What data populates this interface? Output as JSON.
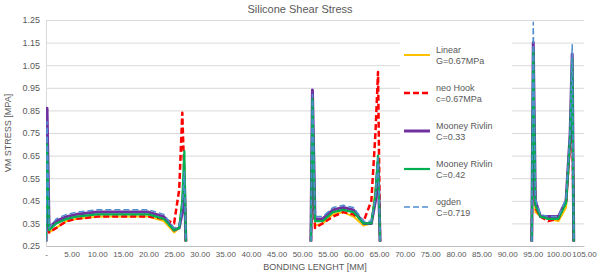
{
  "chart_data": {
    "type": "line",
    "title": "Silicone Shear Stress",
    "x_label": "BONDING LENGHT [MM]",
    "y_label": "VM STRESS [MPA]",
    "x": [
      0,
      0.2,
      0.6,
      2,
      4,
      6,
      10,
      15,
      20,
      23,
      25,
      26,
      26.6,
      27,
      27.3,
      40,
      51.7,
      52,
      52.5,
      54,
      56,
      58,
      60,
      62,
      63.5,
      64.3,
      64.8,
      65.2,
      80,
      94.8,
      95.1,
      95.5,
      96.5,
      98,
      100,
      101.5,
      102.3,
      102.7,
      103
    ],
    "series": [
      {
        "name": "Linear\nG=0.67MPa",
        "color": "#FFC000",
        "line_style": "solid",
        "values": [
          0.27,
          0.6,
          0.31,
          0.33,
          0.36,
          0.37,
          0.38,
          0.38,
          0.38,
          0.36,
          0.31,
          0.33,
          0.45,
          0.6,
          0.27,
          null,
          0.27,
          0.7,
          0.34,
          0.35,
          0.39,
          0.4,
          0.38,
          0.34,
          0.35,
          0.5,
          0.62,
          0.27,
          null,
          0.27,
          0.95,
          0.4,
          0.38,
          0.37,
          0.36,
          0.42,
          0.7,
          0.95,
          0.27
        ]
      },
      {
        "name": "neo Hook\nc=0.67MPa",
        "color": "#FF0000",
        "line_style": "dashed",
        "values": [
          0.27,
          0.62,
          0.31,
          0.33,
          0.36,
          0.37,
          0.38,
          0.38,
          0.38,
          0.37,
          0.35,
          0.5,
          0.84,
          0.55,
          0.27,
          null,
          0.27,
          0.65,
          0.33,
          0.35,
          0.38,
          0.4,
          0.39,
          0.36,
          0.45,
          0.75,
          1.02,
          0.27,
          null,
          0.27,
          0.9,
          0.42,
          0.38,
          0.36,
          0.37,
          0.45,
          0.72,
          0.88,
          0.27
        ]
      },
      {
        "name": "Mooney Rivlin\nC=0.33",
        "color": "#7030A0",
        "line_style": "solid",
        "values": [
          0.27,
          0.86,
          0.33,
          0.36,
          0.38,
          0.39,
          0.4,
          0.4,
          0.4,
          0.38,
          0.32,
          0.33,
          0.4,
          0.55,
          0.27,
          null,
          0.27,
          0.94,
          0.37,
          0.37,
          0.41,
          0.42,
          0.41,
          0.35,
          0.35,
          0.45,
          0.62,
          0.27,
          null,
          0.27,
          1.15,
          0.45,
          0.38,
          0.38,
          0.38,
          0.45,
          0.75,
          1.1,
          0.27
        ]
      },
      {
        "name": "Mooney Rivlin\nC=0.42",
        "color": "#00B050",
        "line_style": "solid",
        "values": [
          0.27,
          0.7,
          0.32,
          0.35,
          0.37,
          0.38,
          0.39,
          0.39,
          0.39,
          0.37,
          0.32,
          0.33,
          0.45,
          0.67,
          0.27,
          null,
          0.27,
          0.9,
          0.36,
          0.36,
          0.4,
          0.41,
          0.4,
          0.35,
          0.35,
          0.48,
          0.65,
          0.27,
          null,
          0.27,
          1.12,
          0.43,
          0.38,
          0.37,
          0.37,
          0.44,
          0.74,
          1.08,
          0.27
        ]
      },
      {
        "name": "ogden\nC=0.719",
        "color": "#4F8FCF",
        "line_style": "dashed",
        "values": [
          0.27,
          0.8,
          0.33,
          0.37,
          0.39,
          0.4,
          0.41,
          0.41,
          0.41,
          0.39,
          0.33,
          0.34,
          0.42,
          0.58,
          0.27,
          null,
          0.27,
          0.92,
          0.38,
          0.38,
          0.42,
          0.43,
          0.42,
          0.36,
          0.36,
          0.47,
          0.64,
          0.27,
          null,
          0.27,
          1.24,
          0.46,
          0.39,
          0.38,
          0.38,
          0.46,
          0.76,
          1.14,
          0.27
        ]
      }
    ],
    "xlim": [
      0,
      105
    ],
    "xticks": [
      {
        "value": 0,
        "label": "-"
      },
      {
        "value": 5,
        "label": "5.00"
      },
      {
        "value": 10,
        "label": "10.00"
      },
      {
        "value": 15,
        "label": "15.00"
      },
      {
        "value": 20,
        "label": "20.00"
      },
      {
        "value": 25,
        "label": "25.00"
      },
      {
        "value": 30,
        "label": "30.00"
      },
      {
        "value": 35,
        "label": "35.00"
      },
      {
        "value": 40,
        "label": "40.00"
      },
      {
        "value": 45,
        "label": "45.00"
      },
      {
        "value": 50,
        "label": "50.00"
      },
      {
        "value": 55,
        "label": "55.00"
      },
      {
        "value": 60,
        "label": "60.00"
      },
      {
        "value": 65,
        "label": "65.00"
      },
      {
        "value": 70,
        "label": "70.00"
      },
      {
        "value": 75,
        "label": "75.00"
      },
      {
        "value": 80,
        "label": "80.00"
      },
      {
        "value": 85,
        "label": "85.00"
      },
      {
        "value": 90,
        "label": "90.00"
      },
      {
        "value": 95,
        "label": "95.00"
      },
      {
        "value": 100,
        "label": "100.00"
      },
      {
        "value": 105,
        "label": "105.00"
      }
    ],
    "ylim": [
      0.25,
      1.25
    ],
    "yticks": [
      0.25,
      0.35,
      0.45,
      0.55,
      0.65,
      0.75,
      0.85,
      0.95,
      1.05,
      1.15,
      1.25
    ],
    "grid": "y",
    "legend": "right"
  }
}
